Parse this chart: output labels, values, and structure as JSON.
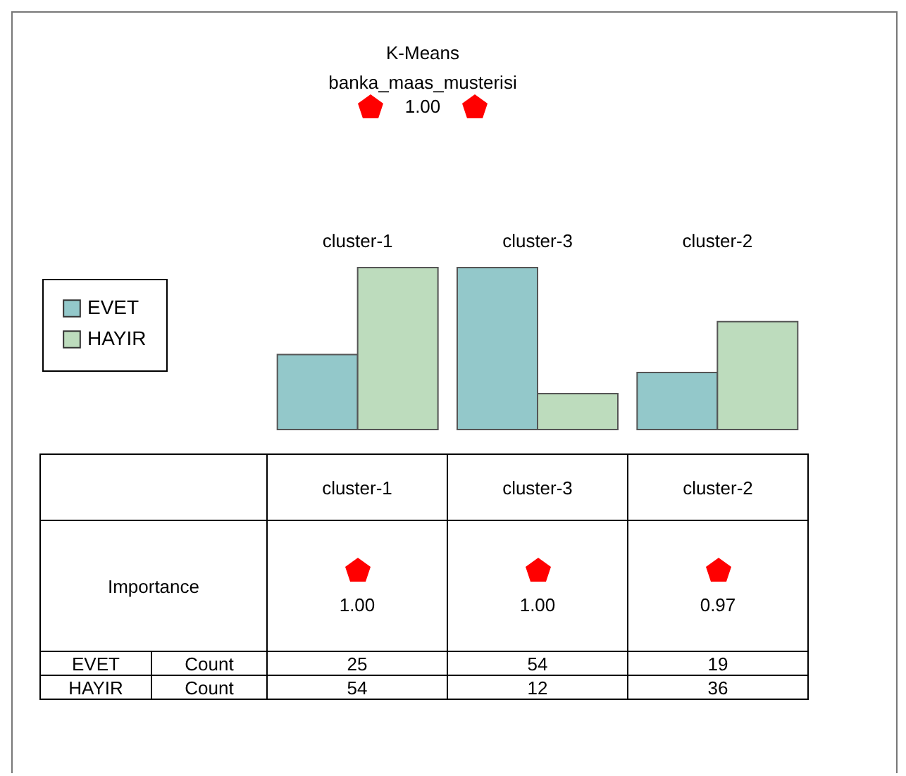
{
  "chart_data": {
    "type": "bar",
    "title": "K-Means",
    "subtitle": "banka_maas_musterisi",
    "categories": [
      "cluster-1",
      "cluster-3",
      "cluster-2"
    ],
    "series": [
      {
        "name": "EVET",
        "color": "#93c8ca",
        "values": [
          25,
          54,
          19
        ]
      },
      {
        "name": "HAYIR",
        "color": "#bddcbd",
        "values": [
          54,
          12,
          36
        ]
      }
    ],
    "legend": "left",
    "data_labels": true,
    "annotations": [
      "1.00",
      "Importance",
      "1.00",
      "1.00",
      "0.97",
      "Count"
    ]
  }
}
